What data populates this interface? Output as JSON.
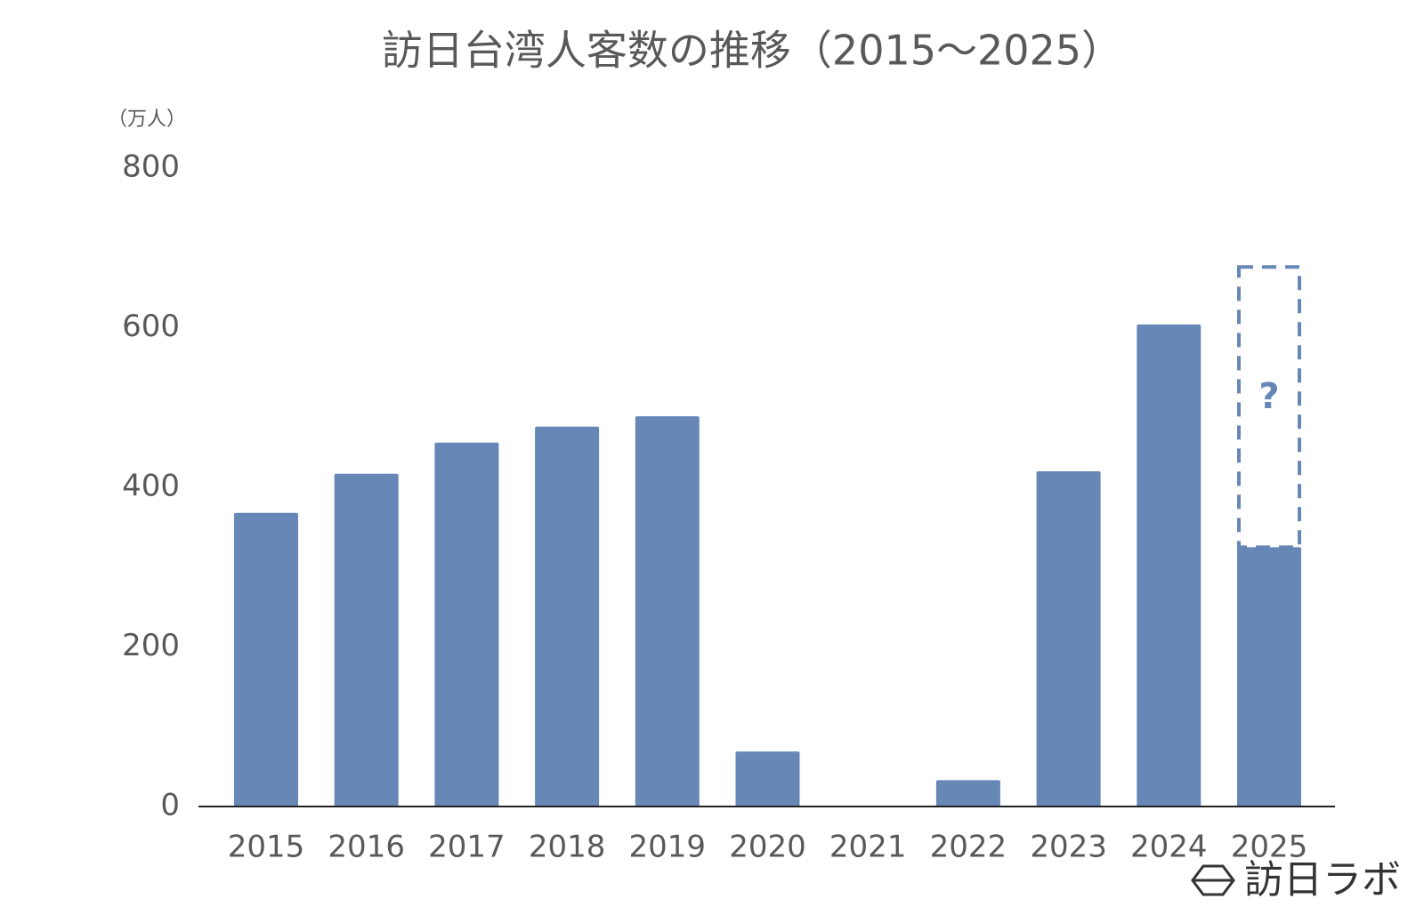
{
  "chart_data": {
    "type": "bar",
    "title": "訪日台湾人客数の推移（2015～2025）",
    "y_unit": "（万人）",
    "categories": [
      "2015",
      "2016",
      "2017",
      "2018",
      "2019",
      "2020",
      "2021",
      "2022",
      "2023",
      "2024",
      "2025"
    ],
    "values": [
      368,
      417,
      456,
      476,
      489,
      69,
      0.5,
      33,
      420,
      604,
      325
    ],
    "color": "#6787b7",
    "ylim": [
      0,
      800
    ],
    "yticks": [
      0,
      200,
      400,
      600,
      800
    ],
    "grid": false,
    "annotations": [
      {
        "text": "?",
        "category_index": 10,
        "ymin": 325,
        "ymax": 676
      }
    ],
    "brand": "訪日ラボ"
  }
}
